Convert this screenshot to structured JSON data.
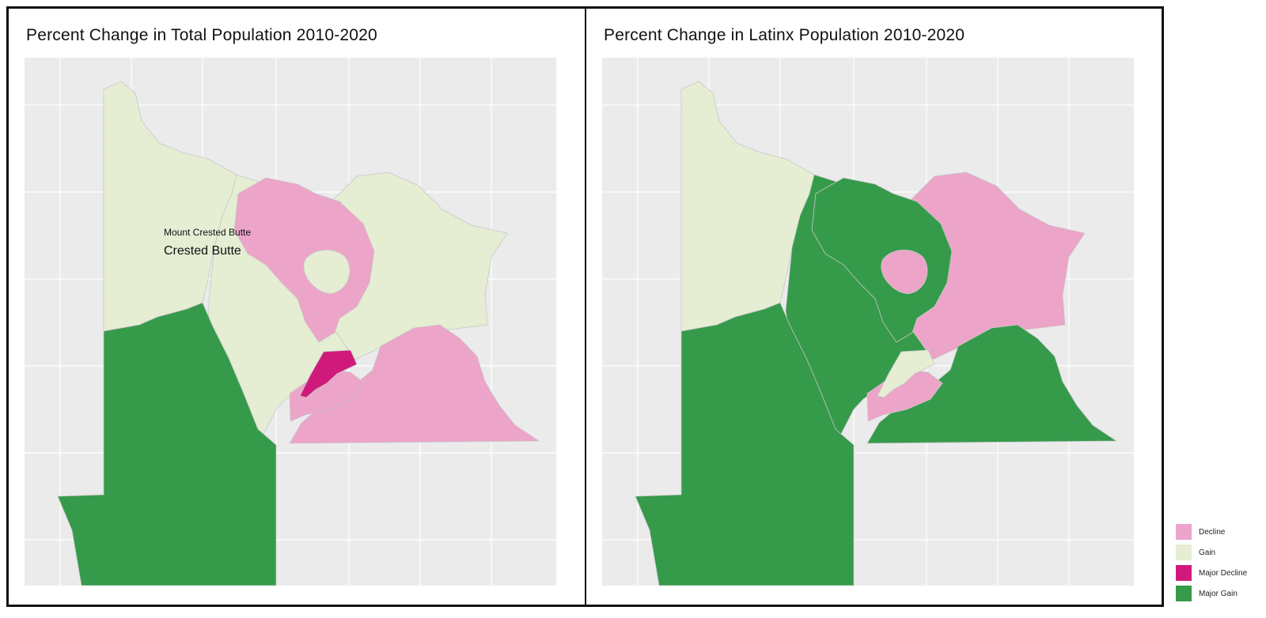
{
  "maps": [
    {
      "title": "Percent Change in Total Population 2010-2020",
      "place_labels": {
        "mount_crested_butte": "Mount Crested Butte",
        "crested_butte": "Crested Butte"
      },
      "regions": {
        "northwest": "Gain",
        "north_ring": "Decline",
        "north_ring_hole": "Gain",
        "northeast": "Gain",
        "center": "Gain",
        "gunnison_city": "Major Decline",
        "southeast": "Decline",
        "southwest": "Major Gain",
        "south_center": "Decline"
      }
    },
    {
      "title": "Percent Change in Latinx Population  2010-2020",
      "regions": {
        "northwest": "Gain",
        "north_ring": "Major Gain",
        "north_ring_hole": "Decline",
        "northeast": "Decline",
        "center": "Major Gain",
        "gunnison_city": "Gain",
        "southeast": "Major Gain",
        "southwest": "Major Gain",
        "south_center": "Decline"
      }
    }
  ],
  "legend": [
    {
      "label": "Decline",
      "color": "#ECA4C8"
    },
    {
      "label": "Gain",
      "color": "#E5EDD3"
    },
    {
      "label": "Major Decline",
      "color": "#D01A7B"
    },
    {
      "label": "Major Gain",
      "color": "#369A4B"
    }
  ],
  "colors": {
    "panel_background": "#EBEBEB",
    "gridline": "#FFFFFF",
    "border": "#C8C8C8"
  }
}
